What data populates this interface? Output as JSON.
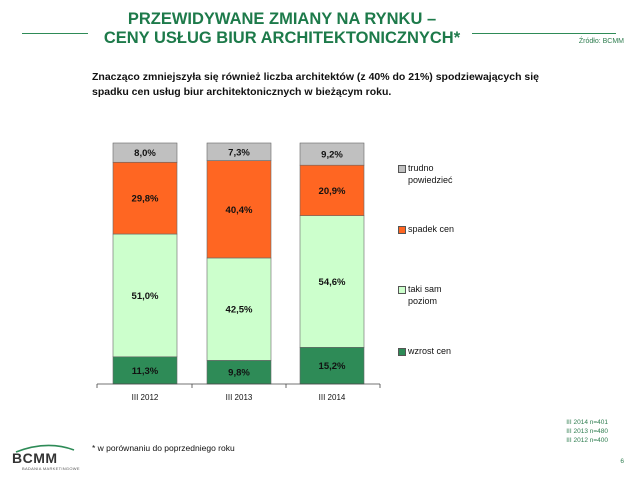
{
  "header": {
    "title_line1": "PRZEWIDYWANE ZMIANY NA RYNKU –",
    "title_line2": "CENY USŁUG BIUR ARCHITEKTONICZNYCH*",
    "source": "Źródło: BCMM"
  },
  "subtitle": "Znacząco zmniejszyła się również liczba architektów (z 40% do 21%) spodziewających się spadku cen usług biur architektonicznych w bieżącym roku.",
  "colors": {
    "trudno": "#c0c0c0",
    "spadek": "#ff6622",
    "taki": "#ccffcc",
    "wzrost": "#2e8b57",
    "accent": "#1d7a4a"
  },
  "chart_data": {
    "type": "bar",
    "stacked": true,
    "percent_stacked": true,
    "categories": [
      "III 2012",
      "III 2013",
      "III 2014"
    ],
    "series": [
      {
        "name": "wzrost cen",
        "key": "wzrost",
        "values": [
          11.3,
          9.8,
          15.2
        ],
        "labels": [
          "11,3%",
          "9,8%",
          "15,2%"
        ]
      },
      {
        "name": "taki sam poziom",
        "key": "taki",
        "values": [
          51.0,
          42.5,
          54.6
        ],
        "labels": [
          "51,0%",
          "42,5%",
          "54,6%"
        ]
      },
      {
        "name": "spadek cen",
        "key": "spadek",
        "values": [
          29.8,
          40.4,
          20.9
        ],
        "labels": [
          "29,8%",
          "40,4%",
          "20,9%"
        ]
      },
      {
        "name": "trudno powiedzieć",
        "key": "trudno",
        "values": [
          8.0,
          7.3,
          9.2
        ],
        "labels": [
          "8,0%",
          "7,3%",
          "9,2%"
        ]
      }
    ],
    "ylim": [
      0,
      100
    ],
    "legend_position": "right"
  },
  "legend": [
    {
      "key": "trudno",
      "line1": "trudno",
      "line2": "powiedzieć"
    },
    {
      "key": "spadek",
      "line1": "spadek cen",
      "line2": ""
    },
    {
      "key": "taki",
      "line1": "taki sam",
      "line2": "poziom"
    },
    {
      "key": "wzrost",
      "line1": "wzrost cen",
      "line2": ""
    }
  ],
  "footnote": "* w porównaniu do poprzedniego roku",
  "samples": [
    "III 2014 n=401",
    "III 2013 n=480",
    "III 2012 n=400"
  ],
  "page_number": "6",
  "logo": {
    "text": "BCMM",
    "sub": "BADANIA MARKETINGOWE"
  }
}
